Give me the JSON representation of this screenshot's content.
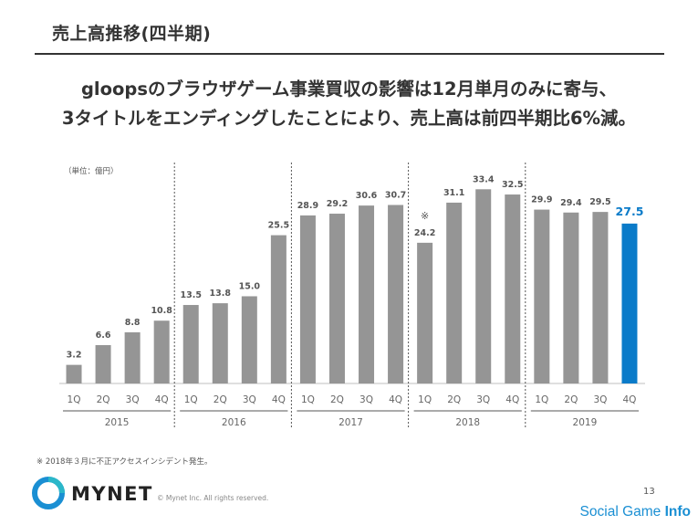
{
  "header": {
    "title": "売上高推移(四半期)",
    "headline_line1": "gloopsのブラウザゲーム事業買収の影響は12月単月のみに寄与、",
    "headline_line2": "3タイトルをエンディングしたことにより、売上高は前四半期比6%減。"
  },
  "chart_data": {
    "type": "bar",
    "unit_label": "（単位：億円）",
    "categories": [
      "1Q",
      "2Q",
      "3Q",
      "4Q",
      "1Q",
      "2Q",
      "3Q",
      "4Q",
      "1Q",
      "2Q",
      "3Q",
      "4Q",
      "1Q",
      "2Q",
      "3Q",
      "4Q",
      "1Q",
      "2Q",
      "3Q",
      "4Q"
    ],
    "years": [
      "2015",
      "2016",
      "2017",
      "2018",
      "2019"
    ],
    "series": [
      {
        "values": [
          3.2,
          6.6,
          8.8,
          10.8,
          13.5,
          13.8,
          15.0,
          25.5,
          28.9,
          29.2,
          30.6,
          30.7,
          24.2,
          31.1,
          33.4,
          32.5,
          29.9,
          29.4,
          29.5,
          27.5
        ]
      }
    ],
    "value_labels": [
      "3.2",
      "6.6",
      "8.8",
      "10.8",
      "13.5",
      "13.8",
      "15.0",
      "25.5",
      "28.9",
      "29.2",
      "30.6",
      "30.7",
      "24.2",
      "31.1",
      "33.4",
      "32.5",
      "29.9",
      "29.4",
      "29.5",
      "27.5"
    ],
    "bar_color": "#959595",
    "highlight_color": "#0a7bc9",
    "highlight_index": 19,
    "note_mark": "※",
    "note_mark_index": 12,
    "year_separators": "dotted",
    "ylim": [
      0,
      38
    ]
  },
  "footnote": "※ 2018年３月に不正アクセスインシデント発生。",
  "footer": {
    "logo_text": "MYNET",
    "copyright": "© Mynet Inc. All rights reserved.",
    "page_number": "13",
    "brand_regular": "Social Game ",
    "brand_bold": "Info"
  },
  "colors": {
    "logo_blue": "#1a8fd3",
    "logo_teal": "#2bb7c9"
  }
}
